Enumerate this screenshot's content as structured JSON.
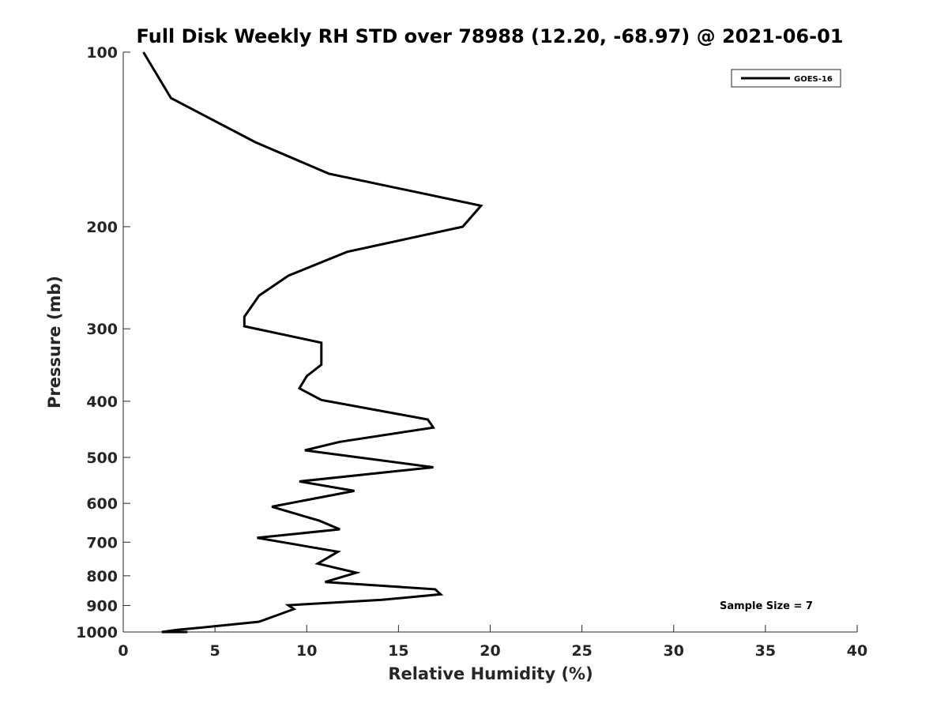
{
  "chart_data": {
    "type": "line",
    "title": "Full Disk Weekly RH STD over 78988 (12.20, -68.97) @ 2021-06-01",
    "xlabel": "Relative Humidity (%)",
    "ylabel": "Pressure (mb)",
    "xlim": [
      0,
      40
    ],
    "ylim": [
      100,
      1000
    ],
    "yscale": "log",
    "y_reversed": true,
    "xticks": [
      0,
      5,
      10,
      15,
      20,
      25,
      30,
      35,
      40
    ],
    "xtick_labels": [
      "0",
      "5",
      "10",
      "15",
      "20",
      "25",
      "30",
      "35",
      "40"
    ],
    "yticks": [
      100,
      200,
      300,
      400,
      500,
      600,
      700,
      800,
      900,
      1000
    ],
    "ytick_labels": [
      "100",
      "200",
      "300",
      "400",
      "500",
      "600",
      "700",
      "800",
      "900",
      "1000"
    ],
    "grid": false,
    "legend_position": "top-right",
    "annotation": "Sample Size = 7",
    "series": [
      {
        "name": "GOES-16",
        "color": "#000000",
        "x": [
          1.1,
          2.6,
          7.2,
          11.2,
          19.5,
          18.5,
          12.2,
          9.0,
          7.4,
          6.6,
          6.6,
          10.8,
          10.8,
          10.0,
          9.6,
          10.8,
          16.6,
          16.9,
          11.8,
          9.9,
          16.9,
          9.6,
          12.6,
          8.1,
          10.7,
          11.8,
          7.3,
          11.7,
          10.6,
          12.7,
          11.0,
          17.0,
          17.3,
          14.1,
          9.0,
          9.3,
          8.4,
          7.4,
          4.6,
          2.9,
          2.1,
          3.1,
          3.5
        ],
        "y": [
          100,
          120,
          143,
          162,
          184,
          200,
          221,
          243,
          263,
          286,
          297,
          317,
          346,
          362,
          380,
          398,
          430,
          444,
          470,
          486,
          520,
          550,
          571,
          608,
          643,
          665,
          688,
          727,
          762,
          790,
          820,
          844,
          861,
          880,
          899,
          913,
          935,
          960,
          980,
          992,
          1000,
          1000,
          1000
        ]
      }
    ]
  }
}
